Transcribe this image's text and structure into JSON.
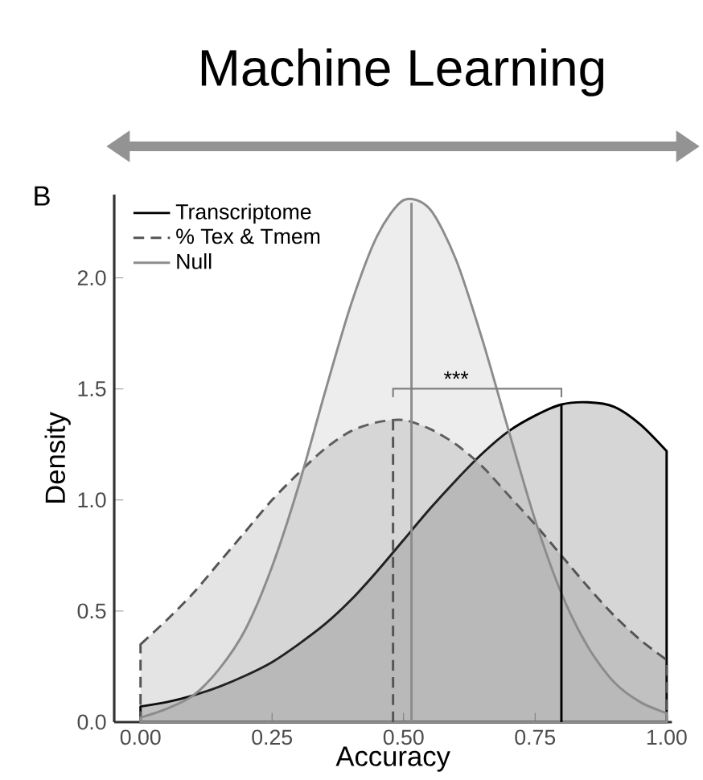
{
  "chart_data": {
    "type": "area",
    "title": "Machine Learning",
    "xlabel": "Accuracy",
    "ylabel": "Density",
    "x": [
      0,
      0.05,
      0.1,
      0.15,
      0.2,
      0.25,
      0.3,
      0.35,
      0.4,
      0.45,
      0.5,
      0.55,
      0.6,
      0.65,
      0.7,
      0.75,
      0.8,
      0.85,
      0.9,
      0.95,
      1.0
    ],
    "series": [
      {
        "name": "Transcriptome",
        "color": "#000000",
        "line_style": "solid",
        "values": [
          0.07,
          0.09,
          0.12,
          0.16,
          0.21,
          0.27,
          0.35,
          0.44,
          0.55,
          0.68,
          0.82,
          0.96,
          1.09,
          1.21,
          1.31,
          1.38,
          1.43,
          1.44,
          1.42,
          1.34,
          1.22
        ]
      },
      {
        "name": "% Tex & Tmem",
        "color": "#555555",
        "line_style": "dashed",
        "values": [
          0.35,
          0.46,
          0.58,
          0.72,
          0.86,
          1.0,
          1.12,
          1.23,
          1.31,
          1.35,
          1.36,
          1.32,
          1.25,
          1.15,
          1.02,
          0.89,
          0.75,
          0.61,
          0.48,
          0.37,
          0.28
        ]
      },
      {
        "name": "Null",
        "color": "#8c8c8c",
        "line_style": "solid",
        "values": [
          0.02,
          0.06,
          0.12,
          0.24,
          0.42,
          0.7,
          1.06,
          1.48,
          1.88,
          2.19,
          2.35,
          2.31,
          2.08,
          1.72,
          1.31,
          0.91,
          0.58,
          0.34,
          0.18,
          0.09,
          0.04
        ]
      }
    ],
    "ref_lines": [
      {
        "axis": "x",
        "value": 0.48,
        "color": "#555555",
        "line_style": "dashed"
      },
      {
        "axis": "x",
        "value": 0.515,
        "color": "#8c8c8c",
        "line_style": "solid"
      },
      {
        "axis": "x",
        "value": 0.8,
        "color": "#000000",
        "line_style": "solid"
      }
    ],
    "annotations": [
      "B",
      "***"
    ],
    "xlim": [
      -0.05,
      1.01
    ],
    "ylim": [
      0,
      2.375
    ],
    "xticks": [
      {
        "value": 0,
        "label": "0.00"
      },
      {
        "value": 0.25,
        "label": "0.25"
      },
      {
        "value": 0.5,
        "label": "0.50"
      },
      {
        "value": 0.75,
        "label": "0.75"
      },
      {
        "value": 1,
        "label": "1.00"
      }
    ],
    "yticks": [
      {
        "value": 0,
        "label": "0.0"
      },
      {
        "value": 0.5,
        "label": "0.5"
      },
      {
        "value": 1,
        "label": "1.0"
      },
      {
        "value": 1.5,
        "label": "1.5"
      },
      {
        "value": 2,
        "label": "2.0"
      }
    ],
    "grid": false,
    "legend": "top left"
  }
}
